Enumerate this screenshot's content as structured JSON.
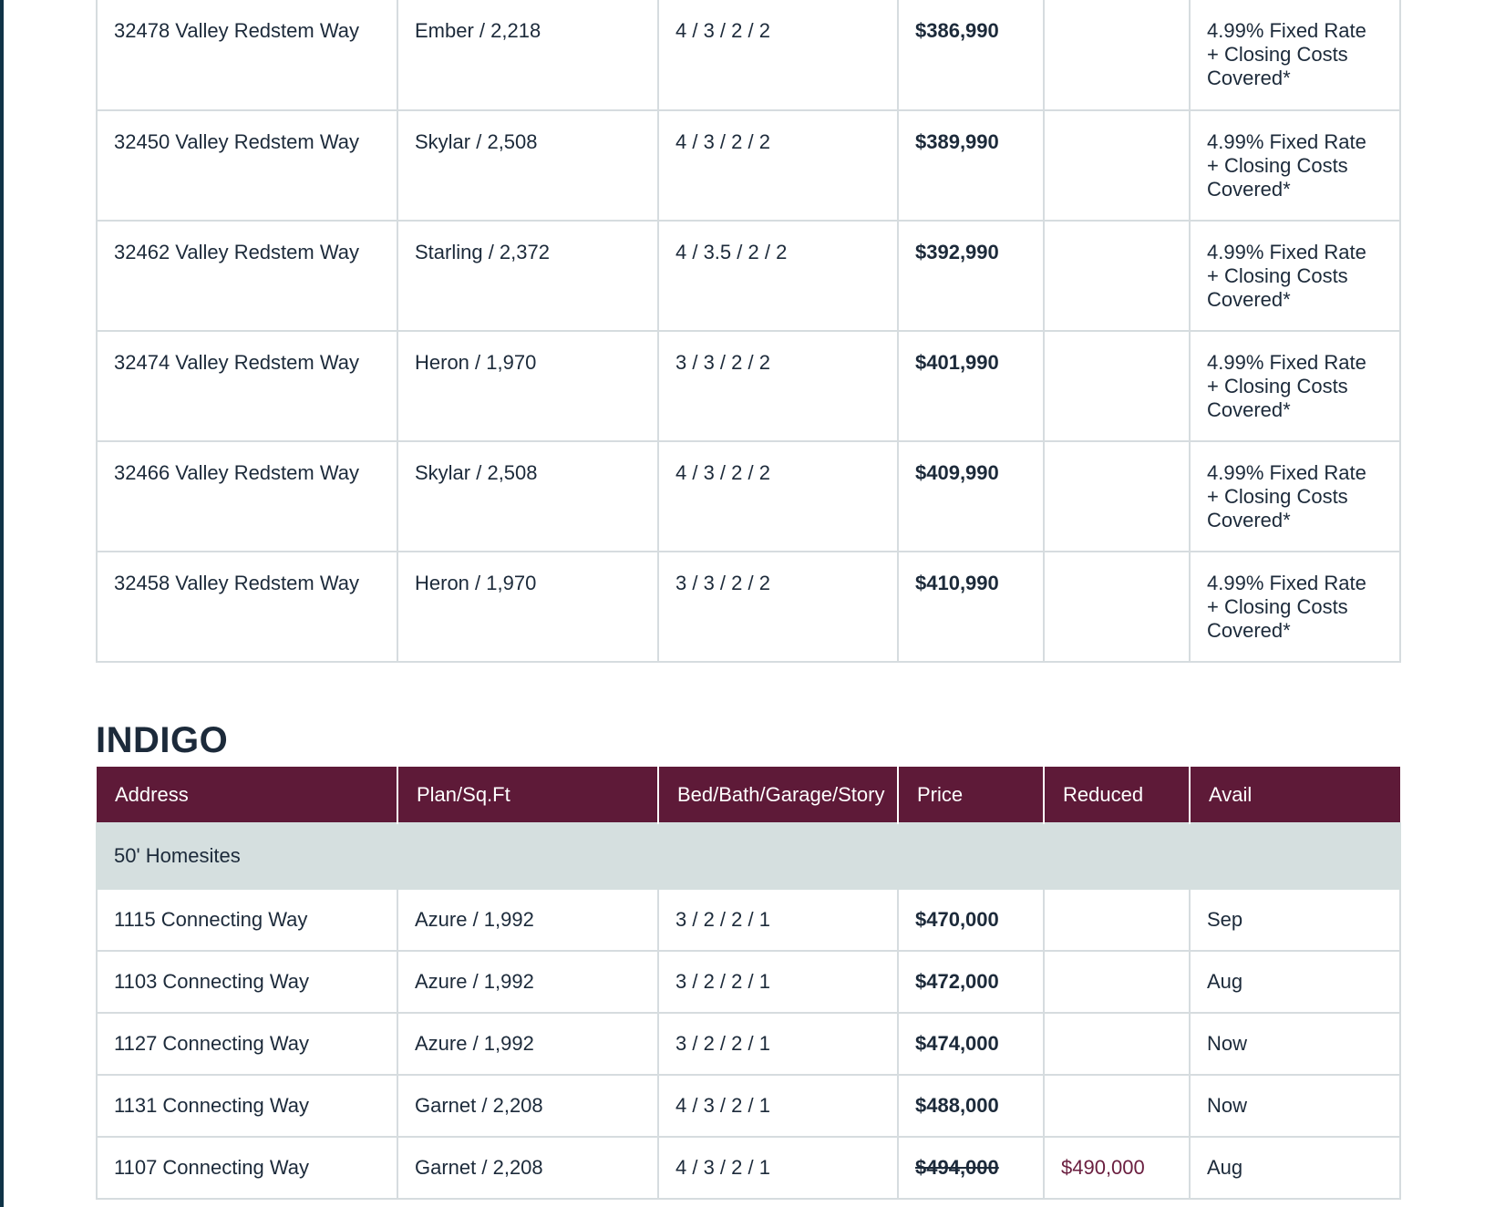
{
  "upper_table": {
    "rows": [
      {
        "address": "32478 Valley Redstem Way",
        "plan": "Ember / 2,218",
        "config": "4 / 3 / 2 / 2",
        "price": "$386,990",
        "reduced": "",
        "avail": "4.99% Fixed Rate + Closing Costs Covered*"
      },
      {
        "address": "32450 Valley Redstem Way",
        "plan": "Skylar / 2,508",
        "config": "4 / 3 / 2 / 2",
        "price": "$389,990",
        "reduced": "",
        "avail": "4.99% Fixed Rate + Closing Costs Covered*"
      },
      {
        "address": "32462 Valley Redstem Way",
        "plan": "Starling / 2,372",
        "config": "4 / 3.5 / 2 / 2",
        "price": "$392,990",
        "reduced": "",
        "avail": "4.99% Fixed Rate + Closing Costs Covered*"
      },
      {
        "address": "32474 Valley Redstem Way",
        "plan": "Heron / 1,970",
        "config": "3 / 3 / 2 / 2",
        "price": "$401,990",
        "reduced": "",
        "avail": "4.99% Fixed Rate + Closing Costs Covered*"
      },
      {
        "address": "32466 Valley Redstem Way",
        "plan": "Skylar / 2,508",
        "config": "4 / 3 / 2 / 2",
        "price": "$409,990",
        "reduced": "",
        "avail": "4.99% Fixed Rate + Closing Costs Covered*"
      },
      {
        "address": "32458 Valley Redstem Way",
        "plan": "Heron / 1,970",
        "config": "3 / 3 / 2 / 2",
        "price": "$410,990",
        "reduced": "",
        "avail": "4.99% Fixed Rate + Closing Costs Covered*"
      }
    ]
  },
  "indigo": {
    "title": "INDIGO",
    "headers": {
      "address": "Address",
      "plan": "Plan/Sq.Ft",
      "config": "Bed/Bath/Garage/Story",
      "price": "Price",
      "reduced": "Reduced",
      "avail": "Avail"
    },
    "group_label": "50' Homesites",
    "rows": [
      {
        "address": "1115 Connecting Way",
        "plan": "Azure / 1,992",
        "config": "3 / 2 / 2 / 1",
        "price": "$470,000",
        "reduced": "",
        "avail": "Sep"
      },
      {
        "address": "1103 Connecting Way",
        "plan": "Azure / 1,992",
        "config": "3 / 2 / 2 / 1",
        "price": "$472,000",
        "reduced": "",
        "avail": "Aug"
      },
      {
        "address": "1127 Connecting Way",
        "plan": "Azure / 1,992",
        "config": "3 / 2 / 2 / 1",
        "price": "$474,000",
        "reduced": "",
        "avail": "Now"
      },
      {
        "address": "1131 Connecting Way",
        "plan": "Garnet / 2,208",
        "config": "4 / 3 / 2 / 1",
        "price": "$488,000",
        "reduced": "",
        "avail": "Now"
      },
      {
        "address": "1107 Connecting Way",
        "plan": "Garnet / 2,208",
        "config": "4 / 3 / 2 / 1",
        "price": "$494,000",
        "reduced": "$490,000",
        "avail": "Aug"
      }
    ]
  },
  "colors": {
    "header_bg": "#5e1a38",
    "group_bg": "#d5dfdf",
    "reduced_text": "#6a1e3f",
    "text": "#1c2a3a",
    "border": "#d6dcdf"
  }
}
